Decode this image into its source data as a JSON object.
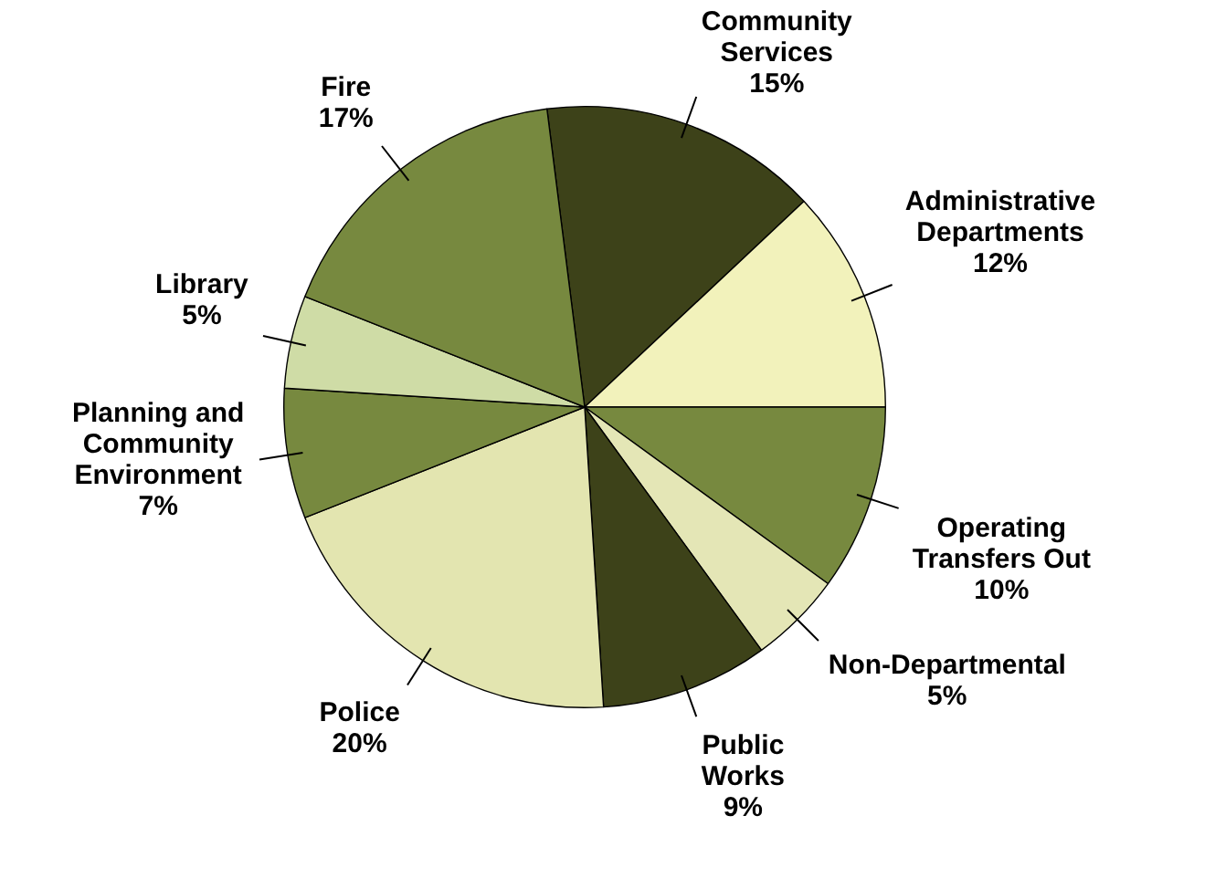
{
  "chart_data": {
    "type": "pie",
    "categories": [
      "Community\nServices",
      "Administrative\nDepartments",
      "Operating\nTransfers Out",
      "Non-Departmental",
      "Public\nWorks",
      "Police",
      "Planning and\nCommunity\nEnvironment",
      "Library",
      "Fire"
    ],
    "values": [
      15,
      12,
      10,
      5,
      9,
      20,
      7,
      5,
      17
    ],
    "value_labels": [
      "15%",
      "12%",
      "10%",
      "5%",
      "9%",
      "20%",
      "7%",
      "5%",
      "17%"
    ],
    "colors": [
      "#3d4219",
      "#f2f2bb",
      "#77893f",
      "#e4e6b6",
      "#3d4219",
      "#e3e5b0",
      "#77893f",
      "#cfdca6",
      "#77893f"
    ],
    "legend": false
  }
}
